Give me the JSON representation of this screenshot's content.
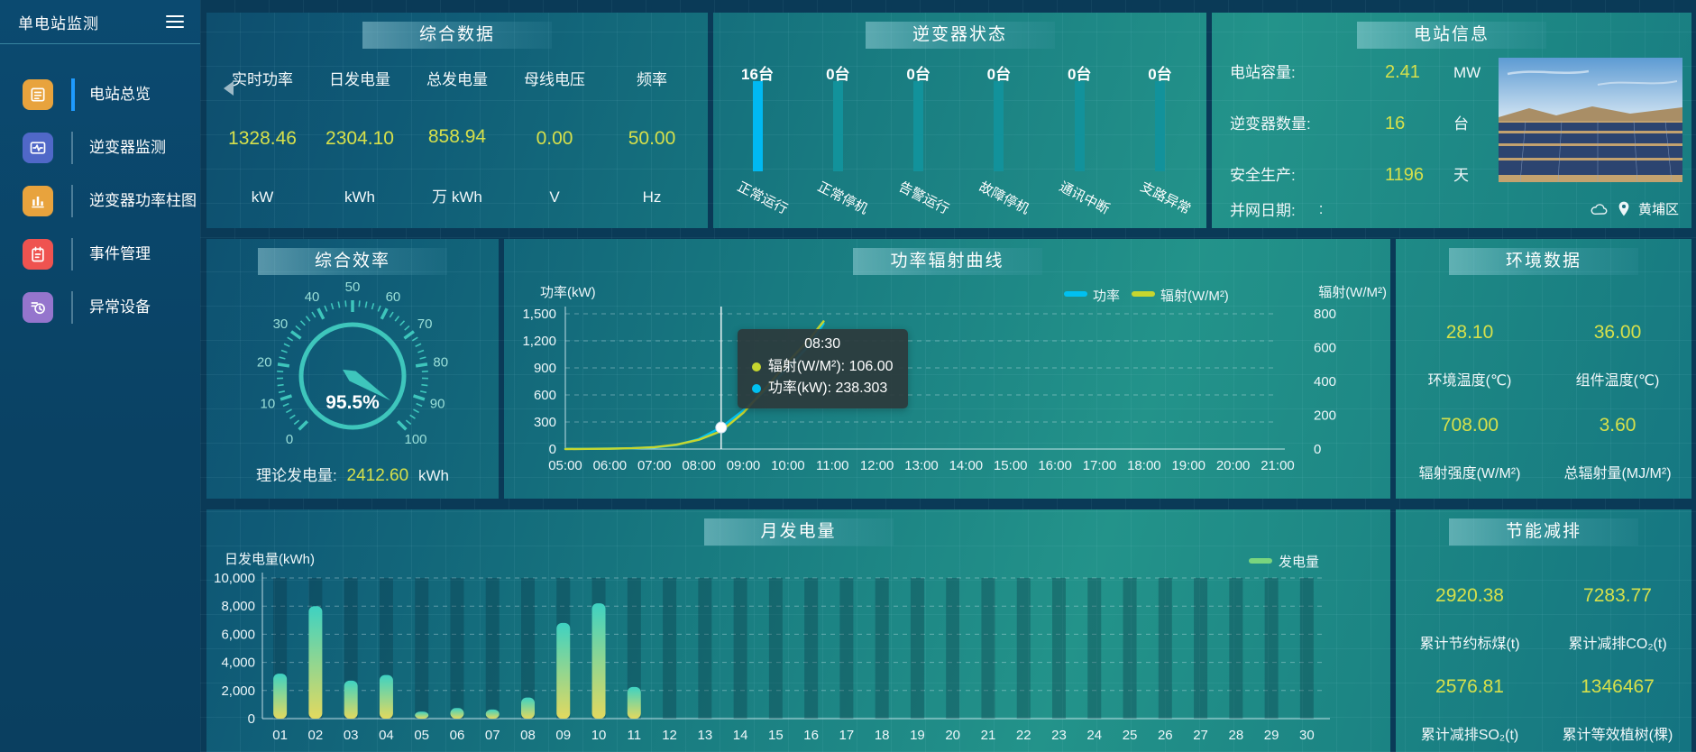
{
  "app": {
    "title": "单电站监测"
  },
  "sidebar": {
    "items": [
      {
        "label": "电站总览",
        "active": true,
        "icon": "overview-icon",
        "icon_bg": "#e8a33d"
      },
      {
        "label": "逆变器监测",
        "active": false,
        "icon": "inverter-monitor-icon",
        "icon_bg": "#5068c8"
      },
      {
        "label": "逆变器功率柱图",
        "active": false,
        "icon": "power-bars-icon",
        "icon_bg": "#e8a33d"
      },
      {
        "label": "事件管理",
        "active": false,
        "icon": "event-icon",
        "icon_bg": "#ef5350"
      },
      {
        "label": "异常设备",
        "active": false,
        "icon": "abnormal-device-icon",
        "icon_bg": "#9575cd"
      }
    ]
  },
  "summary": {
    "title": "综合数据",
    "metrics": [
      {
        "label": "实时功率",
        "value": "1328.46",
        "unit": "kW"
      },
      {
        "label": "日发电量",
        "value": "2304.10",
        "unit": "kWh"
      },
      {
        "label": "总发电量",
        "value": "858.94",
        "unit": "万 kWh"
      },
      {
        "label": "母线电压",
        "value": "0.00",
        "unit": "V"
      },
      {
        "label": "频率",
        "value": "50.00",
        "unit": "Hz"
      }
    ]
  },
  "inverter_status": {
    "title": "逆变器状态"
  },
  "station_info": {
    "title": "电站信息",
    "rows": [
      {
        "label": "电站容量:",
        "value": "2.41",
        "unit": "MW"
      },
      {
        "label": "逆变器数量:",
        "value": "16",
        "unit": "台"
      },
      {
        "label": "安全生产:",
        "value": "1196",
        "unit": "天"
      }
    ],
    "grid_date_label": "并网日期:",
    "grid_date_value": ":",
    "location": "黄埔区"
  },
  "efficiency": {
    "title": "综合效率",
    "footer_label": "理论发电量:",
    "footer_value": "2412.60",
    "footer_unit": "kWh"
  },
  "power_curve": {
    "title": "功率辐射曲线"
  },
  "environment": {
    "title": "环境数据",
    "metrics": [
      {
        "value": "28.10",
        "label": "环境温度(℃)"
      },
      {
        "value": "36.00",
        "label": "组件温度(℃)"
      },
      {
        "value": "708.00",
        "label": "辐射强度(W/M²)"
      },
      {
        "value": "3.60",
        "label": "总辐射量(MJ/M²)"
      }
    ]
  },
  "monthly": {
    "title": "月发电量"
  },
  "saving": {
    "title": "节能减排",
    "metrics": [
      {
        "value": "2920.38",
        "label": "累计节约标煤(t)"
      },
      {
        "value": "7283.77",
        "label": "累计减排CO₂(t)"
      },
      {
        "value": "2576.81",
        "label": "累计减排SO₂(t)"
      },
      {
        "value": "1346467",
        "label": "累计等效植树(棵)"
      }
    ]
  },
  "chart_data": [
    {
      "id": "efficiency_gauge",
      "type": "gauge",
      "min": 0,
      "max": 100,
      "tick_labels": [
        0,
        10,
        20,
        30,
        40,
        50,
        60,
        70,
        80,
        90,
        100
      ],
      "value": 95.5,
      "display": "95.5%",
      "color": "#3ec6bc"
    },
    {
      "id": "inverter_status",
      "type": "bar",
      "title": "逆变器状态",
      "categories": [
        "正常运行",
        "正常停机",
        "告警运行",
        "故障停机",
        "通讯中断",
        "支路异常"
      ],
      "values": [
        16,
        0,
        0,
        0,
        0,
        0
      ],
      "value_labels": [
        "16台",
        "0台",
        "0台",
        "0台",
        "0台",
        "0台"
      ],
      "bar_colors": [
        "#00b9f2",
        "#12929b",
        "#12929b",
        "#12929b",
        "#12929b",
        "#12929b"
      ]
    },
    {
      "id": "power_radiation",
      "type": "line",
      "title": "功率辐射曲线",
      "x_range": [
        5,
        21
      ],
      "x_ticks": [
        "05:00",
        "06:00",
        "07:00",
        "08:00",
        "09:00",
        "10:00",
        "11:00",
        "12:00",
        "13:00",
        "14:00",
        "15:00",
        "16:00",
        "17:00",
        "18:00",
        "19:00",
        "20:00",
        "21:00"
      ],
      "left_axis": {
        "label": "功率(kW)",
        "range": [
          0,
          1500
        ],
        "ticks": [
          0,
          300,
          600,
          900,
          1200,
          1500
        ]
      },
      "right_axis": {
        "label": "辐射(W/M²)",
        "range": [
          0,
          800
        ],
        "ticks": [
          0,
          200,
          400,
          600,
          800
        ]
      },
      "legend": [
        {
          "name": "功率",
          "color": "#00c0f0"
        },
        {
          "name": "辐射(W/M²)",
          "color": "#c6d62f"
        }
      ],
      "series": [
        {
          "name": "功率",
          "axis": "left",
          "color": "#00c0f0",
          "points": [
            [
              5,
              2
            ],
            [
              5.5,
              3
            ],
            [
              6,
              5
            ],
            [
              6.5,
              9
            ],
            [
              7,
              18
            ],
            [
              7.5,
              45
            ],
            [
              8,
              112
            ],
            [
              8.5,
              238.303
            ],
            [
              9,
              430
            ],
            [
              9.5,
              650
            ],
            [
              10,
              900
            ],
            [
              10.5,
              1160
            ],
            [
              10.8,
              1390
            ]
          ]
        },
        {
          "name": "辐射(W/M²)",
          "axis": "right",
          "color": "#c6d62f",
          "points": [
            [
              5,
              0
            ],
            [
              5.5,
              1
            ],
            [
              6,
              2
            ],
            [
              6.5,
              5
            ],
            [
              7,
              11
            ],
            [
              7.5,
              26
            ],
            [
              8,
              55
            ],
            [
              8.5,
              106
            ],
            [
              9,
              215
            ],
            [
              9.5,
              360
            ],
            [
              10,
              515
            ],
            [
              10.5,
              655
            ],
            [
              10.8,
              755
            ]
          ]
        }
      ],
      "tooltip": {
        "x": 8.5,
        "title": "08:30",
        "rows": [
          {
            "color": "#c6d62f",
            "text": "辐射(W/M²): 106.00"
          },
          {
            "color": "#00c0f0",
            "text": "功率(kW): 238.303"
          }
        ]
      }
    },
    {
      "id": "monthly_energy",
      "type": "bar",
      "title": "月发电量",
      "ylabel": "日发电量(kWh)",
      "ylim": [
        0,
        10000
      ],
      "yticks": [
        0,
        2000,
        4000,
        6000,
        8000,
        10000
      ],
      "legend": [
        {
          "name": "发电量",
          "color": "#7ad57e"
        }
      ],
      "bar_gradient": [
        "#3ed2c2",
        "#e2d95f"
      ],
      "categories": [
        "01",
        "02",
        "03",
        "04",
        "05",
        "06",
        "07",
        "08",
        "09",
        "10",
        "11",
        "12",
        "13",
        "14",
        "15",
        "16",
        "17",
        "18",
        "19",
        "20",
        "21",
        "22",
        "23",
        "24",
        "25",
        "26",
        "27",
        "28",
        "29",
        "30"
      ],
      "values": [
        3200,
        8000,
        2700,
        3100,
        500,
        750,
        650,
        1500,
        6800,
        8200,
        2250,
        0,
        0,
        0,
        0,
        0,
        0,
        0,
        0,
        0,
        0,
        0,
        0,
        0,
        0,
        0,
        0,
        0,
        0,
        0
      ]
    }
  ]
}
